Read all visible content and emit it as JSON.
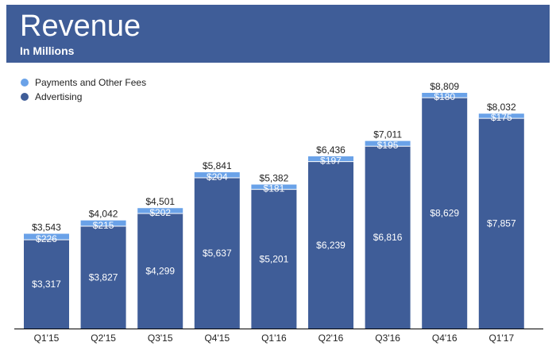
{
  "header": {
    "title": "Revenue",
    "subtitle": "In Millions"
  },
  "colors": {
    "header": "#3f5d98",
    "advertising": "#3f5d98",
    "payments": "#6aa2e8",
    "axis": "#000000"
  },
  "chart_data": {
    "type": "bar",
    "stacked": true,
    "title": "Revenue",
    "subtitle": "In Millions",
    "categories": [
      "Q1'15",
      "Q2'15",
      "Q3'15",
      "Q4'15",
      "Q1'16",
      "Q2'16",
      "Q3'16",
      "Q4'16",
      "Q1'17"
    ],
    "series": [
      {
        "name": "Advertising",
        "values": [
          3317,
          3827,
          4299,
          5637,
          5201,
          6239,
          6816,
          8629,
          7857
        ],
        "labels": [
          "$3,317",
          "$3,827",
          "$4,299",
          "$5,637",
          "$5,201",
          "$6,239",
          "$6,816",
          "$8,629",
          "$7,857"
        ]
      },
      {
        "name": "Payments and Other Fees",
        "values": [
          226,
          215,
          202,
          204,
          181,
          197,
          195,
          180,
          175
        ],
        "labels": [
          "$226",
          "$215",
          "$202",
          "$204",
          "$181",
          "$197",
          "$195",
          "$180",
          "$175"
        ]
      }
    ],
    "totals": [
      3543,
      4042,
      4501,
      5841,
      5382,
      6436,
      7011,
      8809,
      8032
    ],
    "total_labels": [
      "$3,543",
      "$4,042",
      "$4,501",
      "$5,841",
      "$5,382",
      "$6,436",
      "$7,011",
      "$8,809",
      "$8,032"
    ],
    "legend": [
      "Payments and Other Fees",
      "Advertising"
    ],
    "legend_position": "top-left",
    "ylim": [
      0,
      9000
    ],
    "xlabel": "",
    "ylabel": ""
  }
}
